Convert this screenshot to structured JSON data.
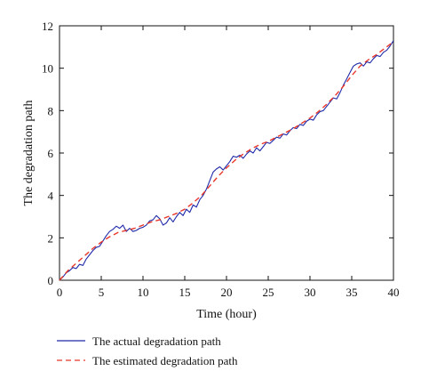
{
  "chart_data": {
    "type": "line",
    "title": "",
    "xlabel": "Time (hour)",
    "ylabel": "The degradation path",
    "xlim": [
      0,
      40
    ],
    "ylim": [
      0,
      12
    ],
    "xticks": [
      0,
      5,
      10,
      15,
      20,
      25,
      30,
      35,
      40
    ],
    "yticks": [
      0,
      2,
      4,
      6,
      8,
      10,
      12
    ],
    "grid": false,
    "legend_position": "below plot",
    "series": [
      {
        "name": "The actual degradation path",
        "color": "#1f2aa8",
        "style": "solid",
        "points": [
          [
            0,
            0.0
          ],
          [
            0.4,
            0.15
          ],
          [
            0.8,
            0.35
          ],
          [
            1.2,
            0.45
          ],
          [
            1.6,
            0.6
          ],
          [
            2.0,
            0.55
          ],
          [
            2.4,
            0.75
          ],
          [
            2.8,
            0.7
          ],
          [
            3.2,
            1.0
          ],
          [
            3.6,
            1.2
          ],
          [
            4.0,
            1.4
          ],
          [
            4.4,
            1.55
          ],
          [
            4.8,
            1.6
          ],
          [
            5.2,
            1.85
          ],
          [
            5.6,
            2.1
          ],
          [
            6.0,
            2.3
          ],
          [
            6.4,
            2.4
          ],
          [
            6.8,
            2.55
          ],
          [
            7.2,
            2.45
          ],
          [
            7.6,
            2.6
          ],
          [
            8.0,
            2.3
          ],
          [
            8.4,
            2.45
          ],
          [
            8.8,
            2.3
          ],
          [
            9.2,
            2.35
          ],
          [
            9.6,
            2.45
          ],
          [
            10.0,
            2.5
          ],
          [
            10.4,
            2.6
          ],
          [
            10.8,
            2.8
          ],
          [
            11.2,
            2.85
          ],
          [
            11.6,
            3.05
          ],
          [
            12.0,
            2.9
          ],
          [
            12.4,
            2.6
          ],
          [
            12.8,
            2.7
          ],
          [
            13.2,
            2.95
          ],
          [
            13.6,
            2.75
          ],
          [
            14.0,
            3.0
          ],
          [
            14.4,
            3.2
          ],
          [
            14.8,
            3.05
          ],
          [
            15.2,
            3.35
          ],
          [
            15.6,
            3.2
          ],
          [
            16.0,
            3.55
          ],
          [
            16.4,
            3.45
          ],
          [
            16.8,
            3.8
          ],
          [
            17.2,
            4.0
          ],
          [
            17.6,
            4.3
          ],
          [
            18.0,
            4.7
          ],
          [
            18.4,
            5.1
          ],
          [
            18.8,
            5.25
          ],
          [
            19.2,
            5.35
          ],
          [
            19.6,
            5.2
          ],
          [
            20.0,
            5.4
          ],
          [
            20.4,
            5.6
          ],
          [
            20.8,
            5.85
          ],
          [
            21.2,
            5.8
          ],
          [
            21.6,
            5.9
          ],
          [
            22.0,
            5.75
          ],
          [
            22.4,
            5.95
          ],
          [
            22.8,
            6.1
          ],
          [
            23.2,
            6.0
          ],
          [
            23.6,
            6.25
          ],
          [
            24.0,
            6.1
          ],
          [
            24.4,
            6.3
          ],
          [
            24.8,
            6.5
          ],
          [
            25.2,
            6.45
          ],
          [
            25.6,
            6.6
          ],
          [
            26.0,
            6.75
          ],
          [
            26.4,
            6.7
          ],
          [
            26.8,
            6.9
          ],
          [
            27.2,
            6.85
          ],
          [
            27.6,
            7.05
          ],
          [
            28.0,
            7.2
          ],
          [
            28.4,
            7.15
          ],
          [
            28.8,
            7.35
          ],
          [
            29.2,
            7.3
          ],
          [
            29.6,
            7.5
          ],
          [
            30.0,
            7.6
          ],
          [
            30.4,
            7.55
          ],
          [
            30.8,
            7.8
          ],
          [
            31.2,
            7.95
          ],
          [
            31.6,
            8.0
          ],
          [
            32.0,
            8.2
          ],
          [
            32.4,
            8.4
          ],
          [
            32.8,
            8.6
          ],
          [
            33.2,
            8.55
          ],
          [
            33.6,
            8.85
          ],
          [
            34.0,
            9.2
          ],
          [
            34.4,
            9.5
          ],
          [
            34.8,
            9.8
          ],
          [
            35.2,
            10.1
          ],
          [
            35.6,
            10.2
          ],
          [
            36.0,
            10.25
          ],
          [
            36.4,
            10.1
          ],
          [
            36.8,
            10.3
          ],
          [
            37.2,
            10.25
          ],
          [
            37.6,
            10.45
          ],
          [
            38.0,
            10.6
          ],
          [
            38.4,
            10.55
          ],
          [
            38.8,
            10.75
          ],
          [
            39.2,
            10.85
          ],
          [
            39.6,
            11.05
          ],
          [
            40.0,
            11.3
          ]
        ]
      },
      {
        "name": "The estimated degradation path",
        "color": "#e8382a",
        "style": "dashed",
        "points": [
          [
            0,
            0.0
          ],
          [
            1,
            0.45
          ],
          [
            2,
            0.8
          ],
          [
            3,
            1.15
          ],
          [
            4,
            1.5
          ],
          [
            5,
            1.8
          ],
          [
            6,
            2.05
          ],
          [
            7,
            2.25
          ],
          [
            8,
            2.35
          ],
          [
            9,
            2.45
          ],
          [
            10,
            2.6
          ],
          [
            11,
            2.75
          ],
          [
            12,
            2.85
          ],
          [
            13,
            3.0
          ],
          [
            14,
            3.15
          ],
          [
            15,
            3.35
          ],
          [
            16,
            3.65
          ],
          [
            17,
            4.0
          ],
          [
            18,
            4.45
          ],
          [
            19,
            4.9
          ],
          [
            20,
            5.3
          ],
          [
            21,
            5.65
          ],
          [
            22,
            5.95
          ],
          [
            23,
            6.2
          ],
          [
            24,
            6.4
          ],
          [
            25,
            6.55
          ],
          [
            26,
            6.75
          ],
          [
            27,
            6.95
          ],
          [
            28,
            7.15
          ],
          [
            29,
            7.4
          ],
          [
            30,
            7.65
          ],
          [
            31,
            7.95
          ],
          [
            32,
            8.3
          ],
          [
            33,
            8.7
          ],
          [
            34,
            9.15
          ],
          [
            35,
            9.65
          ],
          [
            36,
            10.1
          ],
          [
            37,
            10.4
          ],
          [
            38,
            10.65
          ],
          [
            39,
            10.95
          ],
          [
            40,
            11.25
          ]
        ]
      }
    ]
  }
}
